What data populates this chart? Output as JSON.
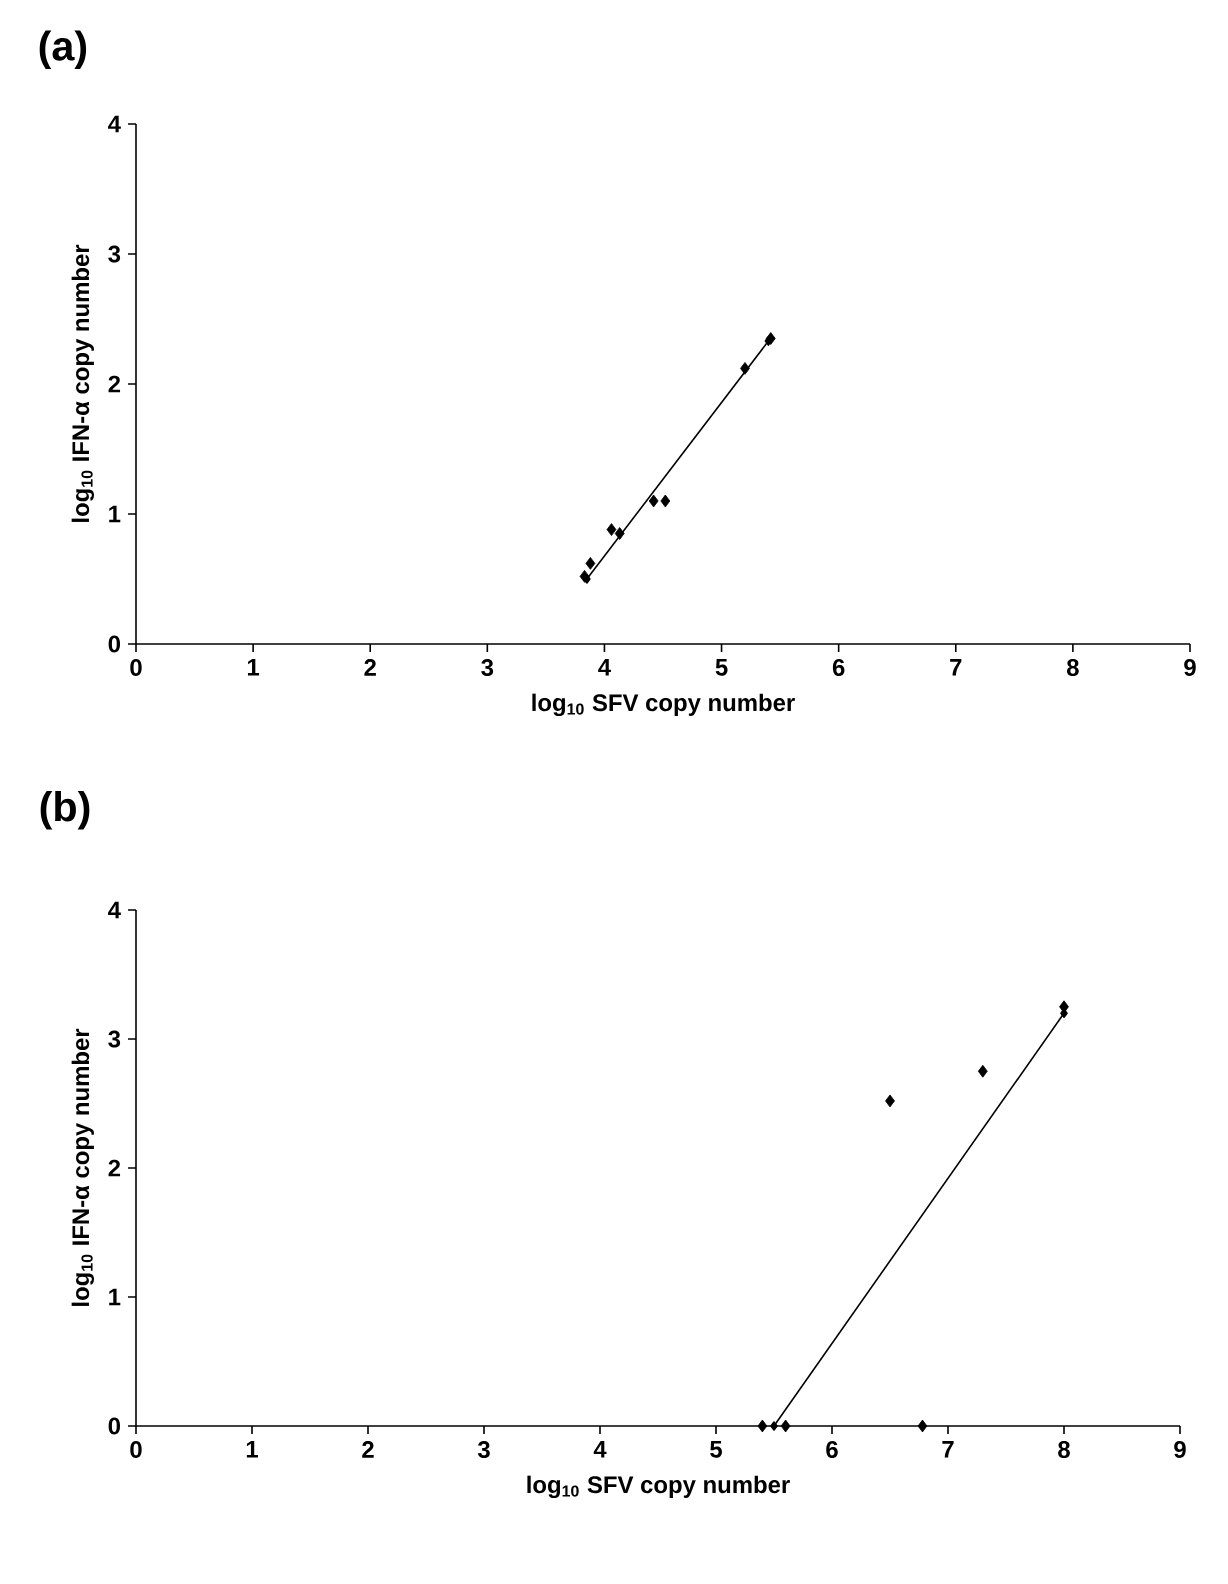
{
  "chart_data": [
    {
      "type": "scatter",
      "title": "(a)",
      "xlabel": "log$_{10}$ SFV copy number",
      "ylabel": "log$_{10}$ IFN-α copy number",
      "xlim": [
        0,
        9
      ],
      "ylim": [
        0,
        4
      ],
      "xticks": [
        0,
        1,
        2,
        3,
        4,
        5,
        6,
        7,
        8,
        9
      ],
      "yticks": [
        0,
        1,
        2,
        3,
        4
      ],
      "marker": "diamond",
      "series": [
        {
          "color": "#000000",
          "x": [
            3.83,
            3.88,
            4.06,
            4.13,
            4.42,
            4.52,
            5.2,
            5.42
          ],
          "values": [
            0.52,
            0.62,
            0.88,
            0.85,
            1.1,
            1.1,
            2.12,
            2.35
          ]
        },
        {
          "type": "line",
          "color": "#000000",
          "x": [
            3.85,
            5.4
          ],
          "values": [
            0.5,
            2.33
          ]
        }
      ]
    },
    {
      "type": "scatter",
      "title": "(b)",
      "xlabel": "log$_{10}$ SFV copy number",
      "ylabel": "log$_{10}$ IFN-α copy number",
      "xlim": [
        0,
        9
      ],
      "ylim": [
        0,
        4
      ],
      "xticks": [
        0,
        1,
        2,
        3,
        4,
        5,
        6,
        7,
        8,
        9
      ],
      "yticks": [
        0,
        1,
        2,
        3,
        4
      ],
      "marker": "diamond",
      "series": [
        {
          "color": "#000000",
          "x": [
            5.4,
            5.6,
            6.5,
            6.78,
            7.3,
            8.0
          ],
          "values": [
            0,
            0,
            2.52,
            0,
            2.75,
            3.25
          ]
        },
        {
          "type": "line",
          "color": "#000000",
          "x": [
            5.5,
            8.0
          ],
          "values": [
            0,
            3.2
          ]
        }
      ]
    }
  ]
}
